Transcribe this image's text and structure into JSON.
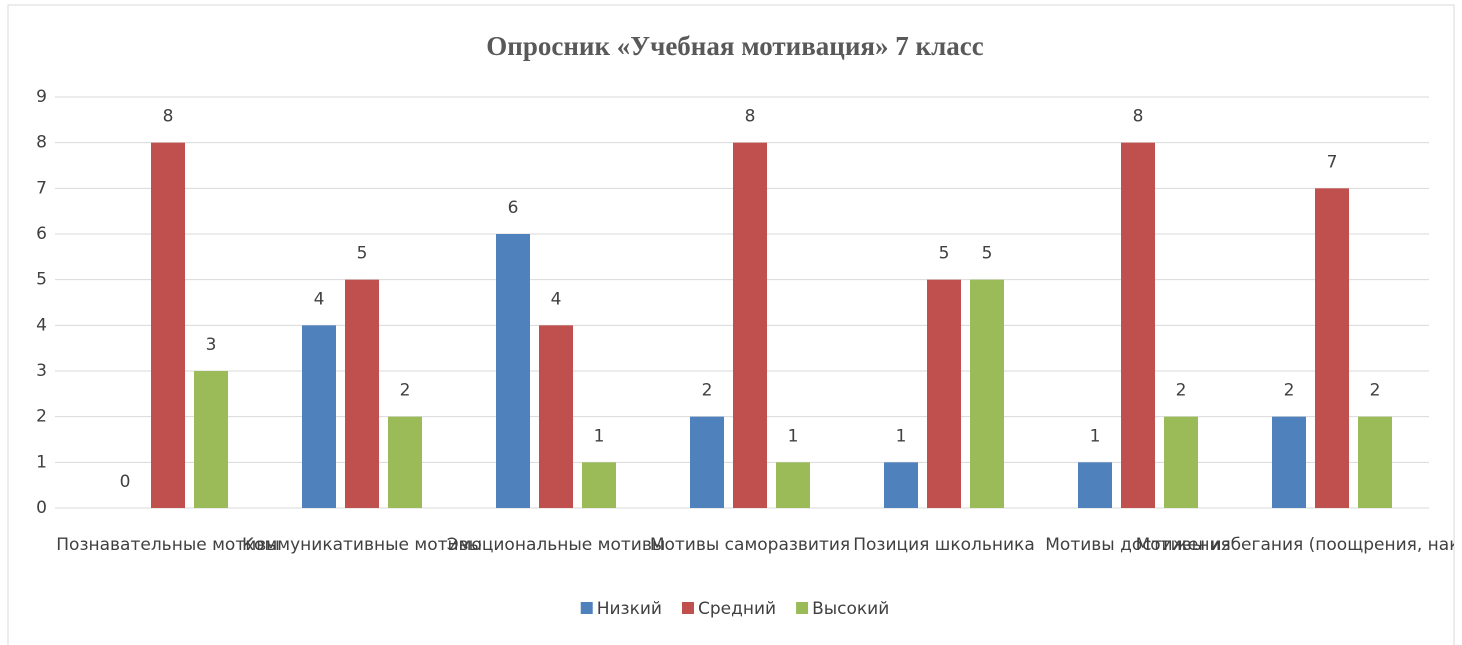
{
  "chart_data": {
    "type": "bar",
    "title": "Опросник «Учебная мотивация» 7 класс",
    "categories": [
      "Познавательные мотивы",
      "Коммуникативные мотивы",
      "Эмоциональные мотивы",
      "Мотивы саморазвития",
      "Позиция школьника",
      "Мотивы достижения",
      "Мотивы избегания (поощрения, наказания)"
    ],
    "series": [
      {
        "name": "Низкий",
        "color": "#4f81bd",
        "values": [
          0,
          4,
          6,
          2,
          1,
          1,
          2
        ]
      },
      {
        "name": "Средний",
        "color": "#c0504d",
        "values": [
          8,
          5,
          4,
          8,
          5,
          8,
          7
        ]
      },
      {
        "name": "Высокий",
        "color": "#9bbb59",
        "values": [
          3,
          2,
          1,
          1,
          5,
          2,
          2
        ]
      }
    ],
    "ylim": [
      0,
      9
    ],
    "yticks": [
      0,
      1,
      2,
      3,
      4,
      5,
      6,
      7,
      8,
      9
    ],
    "grid": true,
    "legend": "bottom"
  }
}
